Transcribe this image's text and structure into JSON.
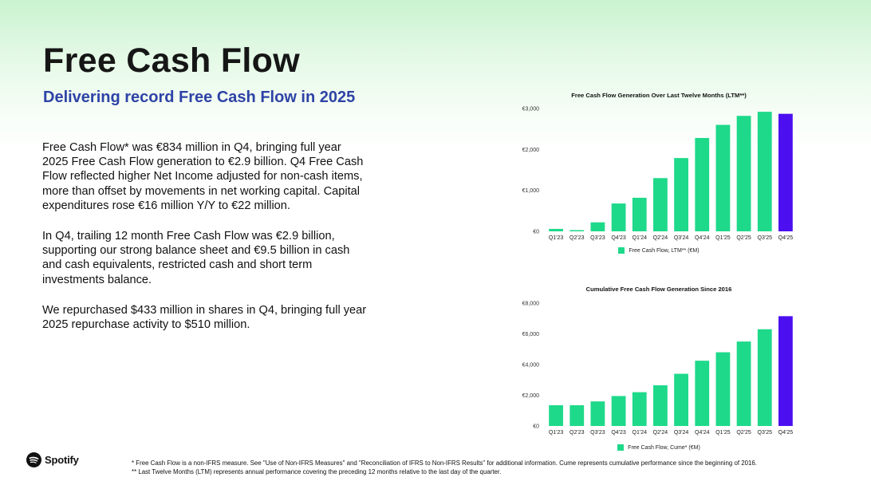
{
  "header": {
    "title": "Free Cash Flow",
    "subtitle": "Delivering record Free Cash Flow in 2025"
  },
  "body": {
    "paragraphs": [
      "Free Cash Flow* was €834 million in Q4, bringing full year 2025 Free Cash Flow generation to €2.9 billion. Q4 Free Cash Flow reflected higher Net Income adjusted for non-cash items, more than offset by movements in net working capital. Capital expenditures rose €16 million Y/Y to €22 million.",
      "In Q4, trailing 12 month Free Cash Flow was €2.9 billion, supporting our strong balance sheet and €9.5 billion in cash and cash equivalents, restricted cash and short term investments balance.",
      "We repurchased $433 million in shares in Q4, bringing full year 2025 repurchase activity to $510 million."
    ]
  },
  "colors": {
    "bar": "#1ed98a",
    "highlight": "#4b0ff0",
    "subtitle": "#2e43a6"
  },
  "chart_data": [
    {
      "type": "bar",
      "title": "Free Cash Flow Generation Over Last Twelve Months (LTM**)",
      "categories": [
        "Q1'23",
        "Q2'23",
        "Q3'23",
        "Q4'23",
        "Q1'24",
        "Q2'24",
        "Q3'24",
        "Q4'24",
        "Q1'25",
        "Q2'25",
        "Q3'25",
        "Q4'25"
      ],
      "series": [
        {
          "name": "Free Cash Flow, LTM** (€M)",
          "values": [
            60,
            30,
            220,
            680,
            820,
            1300,
            1790,
            2280,
            2600,
            2820,
            2920,
            2870
          ]
        }
      ],
      "highlight_index": 11,
      "ylim": [
        0,
        3000
      ],
      "yticks": [
        0,
        1000,
        2000,
        3000
      ],
      "ytick_labels": [
        "€0",
        "€1,000",
        "€2,000",
        "€3,000"
      ],
      "grid": false,
      "legend": "bottom-center"
    },
    {
      "type": "bar",
      "title": "Cumulative Free Cash Flow Generation Since 2016",
      "categories": [
        "Q1'23",
        "Q2'23",
        "Q3'23",
        "Q4'23",
        "Q1'24",
        "Q2'24",
        "Q3'24",
        "Q4'24",
        "Q1'25",
        "Q2'25",
        "Q3'25",
        "Q4'25"
      ],
      "series": [
        {
          "name": "Free Cash Flow, Cume* (€M)",
          "values": [
            1350,
            1350,
            1600,
            1950,
            2200,
            2650,
            3400,
            4250,
            4800,
            5500,
            6300,
            7150
          ]
        }
      ],
      "highlight_index": 11,
      "ylim": [
        0,
        8000
      ],
      "yticks": [
        0,
        2000,
        4000,
        6000,
        8000
      ],
      "ytick_labels": [
        "€0",
        "€2,000",
        "€4,000",
        "€6,000",
        "€8,000"
      ],
      "grid": false,
      "legend": "bottom-center"
    }
  ],
  "footer": {
    "logo_text": "Spotify",
    "logo_icon": "spotify-logo-icon",
    "footnotes": [
      "* Free Cash Flow is a non-IFRS measure. See \"Use of Non-IFRS Measures\" and \"Reconciliation of IFRS to Non-IFRS Results\" for additional information. Cume represents cumulative performance since the beginning of 2016.",
      "** Last Twelve Months (LTM) represents annual performance covering the preceding 12 months relative to the last day of the quarter."
    ]
  }
}
